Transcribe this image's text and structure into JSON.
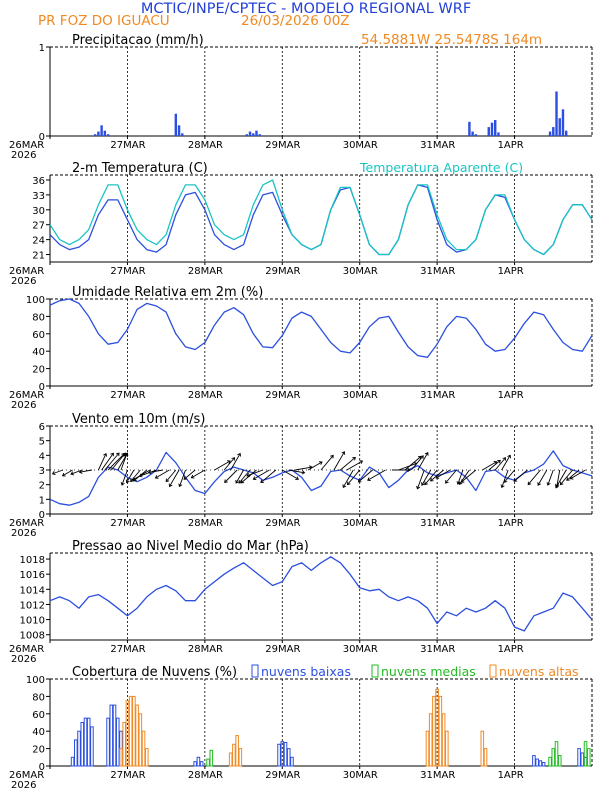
{
  "header": {
    "title": "MCTIC/INPE/CPTEC - MODELO REGIONAL WRF",
    "location": "PR FOZ DO IGUACU",
    "run": "26/03/2026 00Z",
    "coords": "54.5881W 25.5478S 164m"
  },
  "colors": {
    "title": "#2340d8",
    "orange": "#f08a24",
    "blue": "#2b4fe0",
    "cyan": "#19c4c4",
    "green": "#22bb22",
    "black": "#000000"
  },
  "x_axis": {
    "hours": 168,
    "day_ticks": [
      {
        "label": "26MAR",
        "sub": "2026",
        "hour": 0
      },
      {
        "label": "27MAR",
        "sub": "",
        "hour": 24
      },
      {
        "label": "28MAR",
        "sub": "",
        "hour": 48
      },
      {
        "label": "29MAR",
        "sub": "",
        "hour": 72
      },
      {
        "label": "30MAR",
        "sub": "",
        "hour": 96
      },
      {
        "label": "31MAR",
        "sub": "",
        "hour": 120
      },
      {
        "label": "1APR",
        "sub": "",
        "hour": 144
      }
    ]
  },
  "chart_data": [
    {
      "type": "bar",
      "id": "precip",
      "title": "Precipitacao (mm/h)",
      "ylim": [
        0,
        1
      ],
      "yticks": [
        0,
        1
      ],
      "x": [
        14,
        15,
        16,
        17,
        18,
        39,
        40,
        41,
        61,
        62,
        63,
        64,
        65,
        130,
        131,
        132,
        136,
        137,
        138,
        139,
        155,
        156,
        157,
        158,
        159,
        160
      ],
      "values": [
        0.02,
        0.05,
        0.12,
        0.06,
        0.02,
        0.25,
        0.12,
        0.03,
        0.02,
        0.05,
        0.03,
        0.06,
        0.02,
        0.16,
        0.05,
        0.02,
        0.1,
        0.15,
        0.18,
        0.04,
        0.05,
        0.1,
        0.5,
        0.2,
        0.3,
        0.06
      ]
    },
    {
      "type": "line",
      "id": "temp",
      "title": "2-m Temperatura (C)",
      "legend2": "Temperatura Aparente (C)",
      "ylim": [
        19.5,
        37
      ],
      "yticks": [
        21,
        24,
        27,
        30,
        33,
        36
      ],
      "series": [
        {
          "name": "Temperatura",
          "x": [
            0,
            3,
            6,
            9,
            12,
            15,
            18,
            21,
            24,
            27,
            30,
            33,
            36,
            39,
            42,
            45,
            48,
            51,
            54,
            57,
            60,
            63,
            66,
            69,
            72,
            75,
            78,
            81,
            84,
            87,
            90,
            93,
            96,
            99,
            102,
            105,
            108,
            111,
            114,
            117,
            120,
            123,
            126,
            129,
            132,
            135,
            138,
            141,
            144,
            147,
            150,
            153,
            156,
            159,
            162,
            165,
            168
          ],
          "values": [
            25,
            23,
            22,
            22.5,
            24,
            29,
            32,
            32,
            28,
            24,
            22,
            21.5,
            23,
            29,
            33,
            33.5,
            30,
            25,
            23,
            22,
            23,
            29,
            33,
            33.5,
            29,
            25,
            23,
            22,
            23,
            30,
            34,
            34.5,
            29,
            23,
            21,
            21,
            24,
            31,
            35,
            34.5,
            28,
            23,
            21.5,
            22,
            24,
            30,
            33,
            32.5,
            28,
            24,
            22,
            21,
            23,
            28,
            31,
            31,
            28
          ]
        },
        {
          "name": "Temperatura Aparente",
          "x": [
            0,
            3,
            6,
            9,
            12,
            15,
            18,
            21,
            24,
            27,
            30,
            33,
            36,
            39,
            42,
            45,
            48,
            51,
            54,
            57,
            60,
            63,
            66,
            69,
            72,
            75,
            78,
            81,
            84,
            87,
            90,
            93,
            96,
            99,
            102,
            105,
            108,
            111,
            114,
            117,
            120,
            123,
            126,
            129,
            132,
            135,
            138,
            141,
            144,
            147,
            150,
            153,
            156,
            159,
            162,
            165,
            168
          ],
          "values": [
            27,
            24,
            23,
            24,
            26,
            31,
            35,
            35,
            30,
            26,
            24,
            23,
            25,
            31,
            35,
            35,
            32,
            27,
            25,
            24,
            25,
            31,
            35,
            36,
            30,
            25,
            23,
            22,
            23,
            30,
            34.5,
            34.5,
            29,
            23,
            21,
            21,
            24,
            31,
            35,
            35,
            29,
            24,
            22,
            22,
            24,
            30,
            33,
            33,
            28,
            24,
            22,
            21,
            23,
            28,
            31,
            31,
            28
          ]
        }
      ]
    },
    {
      "type": "line",
      "id": "rh",
      "title": "Umidade Relativa em 2m (%)",
      "ylim": [
        0,
        100
      ],
      "yticks": [
        0,
        20,
        40,
        60,
        80,
        100
      ],
      "series": [
        {
          "name": "Umidade",
          "x": [
            0,
            3,
            6,
            9,
            12,
            15,
            18,
            21,
            24,
            27,
            30,
            33,
            36,
            39,
            42,
            45,
            48,
            51,
            54,
            57,
            60,
            63,
            66,
            69,
            72,
            75,
            78,
            81,
            84,
            87,
            90,
            93,
            96,
            99,
            102,
            105,
            108,
            111,
            114,
            117,
            120,
            123,
            126,
            129,
            132,
            135,
            138,
            141,
            144,
            147,
            150,
            153,
            156,
            159,
            162,
            165,
            168
          ],
          "values": [
            93,
            98,
            100,
            95,
            80,
            60,
            48,
            50,
            65,
            88,
            95,
            92,
            85,
            60,
            45,
            42,
            50,
            70,
            85,
            90,
            82,
            60,
            45,
            44,
            58,
            78,
            85,
            80,
            65,
            50,
            40,
            38,
            50,
            68,
            78,
            80,
            62,
            45,
            35,
            33,
            48,
            68,
            80,
            78,
            65,
            48,
            40,
            42,
            55,
            72,
            85,
            82,
            65,
            50,
            42,
            40,
            58
          ]
        }
      ]
    },
    {
      "type": "line",
      "id": "wind",
      "title": "Vento em 10m (m/s)",
      "ylim": [
        0,
        6
      ],
      "yticks": [
        0,
        1,
        2,
        3,
        4,
        5,
        6
      ],
      "series": [
        {
          "name": "Vento",
          "x": [
            0,
            3,
            6,
            9,
            12,
            15,
            18,
            21,
            24,
            27,
            30,
            33,
            36,
            39,
            42,
            45,
            48,
            51,
            54,
            57,
            60,
            63,
            66,
            69,
            72,
            75,
            78,
            81,
            84,
            87,
            90,
            93,
            96,
            99,
            102,
            105,
            108,
            111,
            114,
            117,
            120,
            123,
            126,
            129,
            132,
            135,
            138,
            141,
            144,
            147,
            150,
            153,
            156,
            159,
            162,
            165,
            168
          ],
          "values": [
            1,
            0.7,
            0.6,
            0.8,
            1.2,
            2.5,
            3.2,
            3,
            2.5,
            2.2,
            2.5,
            3,
            4.2,
            3.5,
            2.5,
            1.6,
            1.4,
            2.2,
            2.9,
            3.2,
            3,
            2.8,
            2.3,
            2.5,
            2.8,
            3,
            2.5,
            1.6,
            1.9,
            2.9,
            3,
            2.6,
            2.3,
            3.2,
            2.8,
            1.8,
            2.3,
            3,
            3.3,
            2.8,
            2.6,
            2.8,
            3,
            2.5,
            1.6,
            2.9,
            3,
            2.5,
            2.3,
            2.8,
            3,
            3.4,
            4.3,
            3.3,
            3,
            2.8,
            2.6
          ]
        }
      ]
    },
    {
      "type": "line",
      "id": "pressure",
      "title": "Pressao ao Nivel Medio do Mar (hPa)",
      "ylim": [
        1007.3,
        1018.8
      ],
      "yticks": [
        1008,
        1010,
        1012,
        1014,
        1016,
        1018
      ],
      "series": [
        {
          "name": "Pressao",
          "x": [
            0,
            3,
            6,
            9,
            12,
            15,
            18,
            21,
            24,
            27,
            30,
            33,
            36,
            39,
            42,
            45,
            48,
            51,
            54,
            57,
            60,
            63,
            66,
            69,
            72,
            75,
            78,
            81,
            84,
            87,
            90,
            93,
            96,
            99,
            102,
            105,
            108,
            111,
            114,
            117,
            120,
            123,
            126,
            129,
            132,
            135,
            138,
            141,
            144,
            147,
            150,
            153,
            156,
            159,
            162,
            165,
            168
          ],
          "values": [
            1012.5,
            1013,
            1012.5,
            1011.5,
            1013,
            1013.3,
            1012.5,
            1011.5,
            1010.5,
            1011.5,
            1013,
            1014,
            1014.5,
            1013.8,
            1012.5,
            1012.5,
            1014,
            1015,
            1016,
            1016.8,
            1017.5,
            1016.5,
            1015.5,
            1014.5,
            1015,
            1017,
            1017.5,
            1016.5,
            1017.5,
            1018.3,
            1017.5,
            1016,
            1014.2,
            1013.8,
            1014,
            1013,
            1012.5,
            1013,
            1012.5,
            1011.5,
            1009.5,
            1011,
            1010.5,
            1011.5,
            1011,
            1011.5,
            1012.5,
            1011.5,
            1009,
            1008.5,
            1010.5,
            1011,
            1011.5,
            1013.5,
            1013,
            1011.5,
            1010
          ]
        }
      ]
    },
    {
      "type": "bar",
      "id": "clouds",
      "title": "Cobertura de Nuvens (%)",
      "ylim": [
        0,
        100
      ],
      "yticks": [
        0,
        20,
        40,
        60,
        80,
        100
      ],
      "series": [
        {
          "name": "nuvens baixas",
          "x": [
            7,
            8,
            9,
            10,
            11,
            12,
            13,
            18,
            19,
            20,
            21,
            22,
            45,
            46,
            47,
            71,
            72,
            73,
            74,
            75,
            150,
            151,
            152,
            153,
            164,
            165,
            166
          ],
          "values": [
            10,
            30,
            40,
            50,
            55,
            55,
            45,
            55,
            70,
            70,
            55,
            40,
            5,
            10,
            5,
            25,
            28,
            27,
            20,
            10,
            12,
            8,
            6,
            4,
            20,
            15,
            10
          ]
        },
        {
          "name": "nuvens medias",
          "x": [
            49,
            50,
            155,
            156,
            157,
            158,
            166,
            167
          ],
          "values": [
            8,
            18,
            10,
            20,
            28,
            12,
            28,
            20
          ]
        },
        {
          "name": "nuvens altas",
          "x": [
            22,
            23,
            24,
            25,
            26,
            27,
            28,
            29,
            30,
            56,
            57,
            58,
            59,
            117,
            118,
            119,
            120,
            121,
            122,
            123,
            134,
            135
          ],
          "values": [
            20,
            50,
            75,
            80,
            80,
            70,
            60,
            40,
            20,
            15,
            25,
            35,
            20,
            40,
            60,
            80,
            88,
            80,
            60,
            40,
            40,
            20
          ]
        }
      ]
    }
  ],
  "panels": {
    "precip": {
      "title": "Precipitacao (mm/h)"
    },
    "temp": {
      "title": "2-m Temperatura (C)",
      "legend2": "Temperatura Aparente (C)"
    },
    "rh": {
      "title": "Umidade Relativa em 2m (%)"
    },
    "wind": {
      "title": "Vento em 10m (m/s)"
    },
    "pressure": {
      "title": "Pressao ao Nivel Medio do Mar (hPa)"
    },
    "clouds": {
      "title": "Cobertura de Nuvens (%)",
      "legend": [
        "nuvens baixas",
        "nuvens medias",
        "nuvens altas"
      ]
    }
  },
  "barbs": {
    "hours": [
      4,
      7,
      10,
      13,
      15,
      16,
      17,
      18,
      19,
      21,
      22,
      24,
      26,
      28,
      30,
      31,
      33,
      35,
      37,
      39,
      40,
      42,
      45,
      48,
      51,
      54,
      56,
      58,
      60,
      62,
      64,
      66,
      68,
      70,
      72,
      74,
      76,
      80,
      84,
      88,
      90,
      92,
      94,
      96,
      100,
      104,
      106,
      108,
      110,
      112,
      114,
      116,
      118,
      120,
      122,
      124,
      126,
      128,
      130,
      132,
      134,
      136,
      138,
      140,
      142,
      144,
      148,
      152,
      154,
      156,
      158,
      160,
      162,
      164,
      166
    ],
    "speed": [
      0.8,
      0.9,
      1.0,
      1.1,
      2.2,
      2.7,
      3.0,
      3.2,
      3.0,
      2.5,
      2.0,
      1.8,
      1.5,
      1.6,
      2.0,
      2.6,
      2.2,
      1.5,
      1.8,
      1.6,
      2.4,
      2.1,
      1.5,
      1.7,
      2.2,
      1.8,
      2.4,
      2.1,
      1.6,
      2.0,
      2.6,
      2.0,
      2.3,
      2.5,
      2.3,
      1.8,
      2.0,
      1.8,
      2.4,
      2.8,
      2.5,
      2.2,
      2.6,
      2.4,
      2.3,
      2.7,
      2.2,
      2.5,
      2.8,
      2.3,
      2.6,
      2.6,
      2.1,
      2.4,
      2.0,
      1.8,
      2.0,
      1.6,
      2.1,
      2.4,
      1.9,
      1.6,
      1.8,
      2.0,
      2.3,
      1.8,
      2.1,
      2.4,
      2.1,
      1.8,
      2.0,
      2.7,
      2.4,
      1.8,
      2.1
    ],
    "dir": [
      250,
      240,
      250,
      260,
      25,
      35,
      40,
      45,
      40,
      30,
      20,
      200,
      210,
      220,
      230,
      240,
      250,
      260,
      240,
      220,
      210,
      200,
      230,
      240,
      60,
      40,
      30,
      225,
      210,
      220,
      230,
      250,
      240,
      230,
      120,
      100,
      80,
      60,
      40,
      30,
      50,
      60,
      210,
      220,
      230,
      240,
      90,
      70,
      50,
      40,
      30,
      200,
      210,
      220,
      230,
      240,
      220,
      200,
      215,
      230,
      60,
      50,
      40,
      30,
      200,
      220,
      230,
      220,
      210,
      200,
      190,
      210,
      220,
      230,
      240
    ]
  }
}
